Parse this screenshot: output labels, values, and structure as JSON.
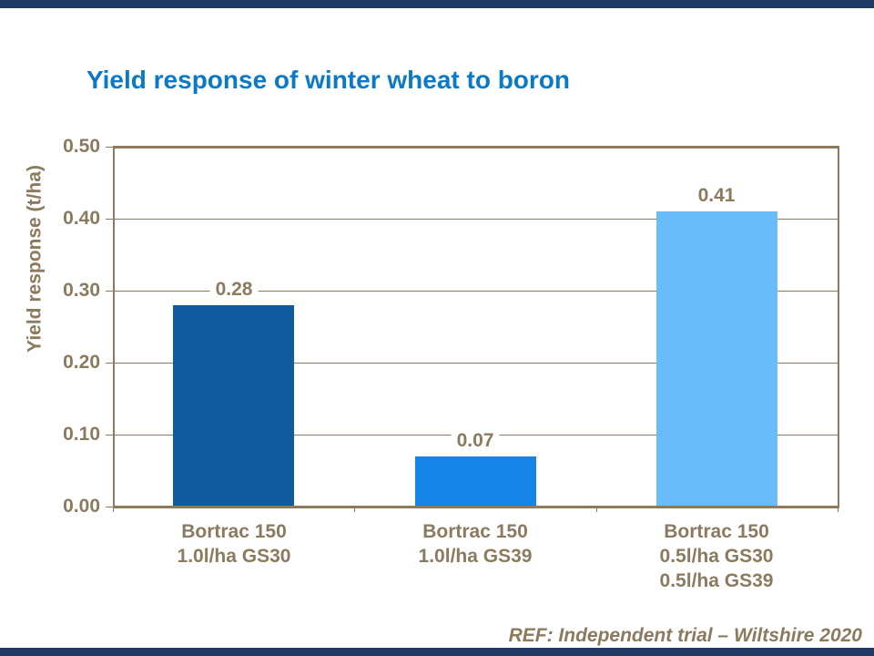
{
  "slide": {
    "title": "Yield response of winter wheat to boron",
    "reference": "REF: Independent trial – Wiltshire 2020",
    "colors": {
      "title_blue": "#0B79C6",
      "axis_brown": "#8B7A5E",
      "band_navy": "#1F3864",
      "plot_background": "#FFFFFF"
    }
  },
  "chart_data": {
    "type": "bar",
    "title": "Yield response of winter wheat to boron",
    "xlabel": "",
    "ylabel": "Yield response (t/ha)",
    "ylim": [
      0,
      0.5
    ],
    "ytick_step": 0.1,
    "ytick_labels": [
      "0.00",
      "0.10",
      "0.20",
      "0.30",
      "0.40",
      "0.50"
    ],
    "categories": [
      [
        "Bortrac 150",
        "1.0l/ha GS30"
      ],
      [
        "Bortrac 150",
        "1.0l/ha GS39"
      ],
      [
        "Bortrac 150",
        "0.5l/ha GS30",
        "0.5l/ha GS39"
      ]
    ],
    "values": [
      0.28,
      0.07,
      0.41
    ],
    "data_labels": [
      "0.28",
      "0.07",
      "0.41"
    ],
    "bar_colors": [
      "#0F5BA0",
      "#1484E8",
      "#69BBFA"
    ],
    "grid": "horizontal",
    "legend": "none",
    "footnote": "REF: Independent trial – Wiltshire 2020"
  }
}
